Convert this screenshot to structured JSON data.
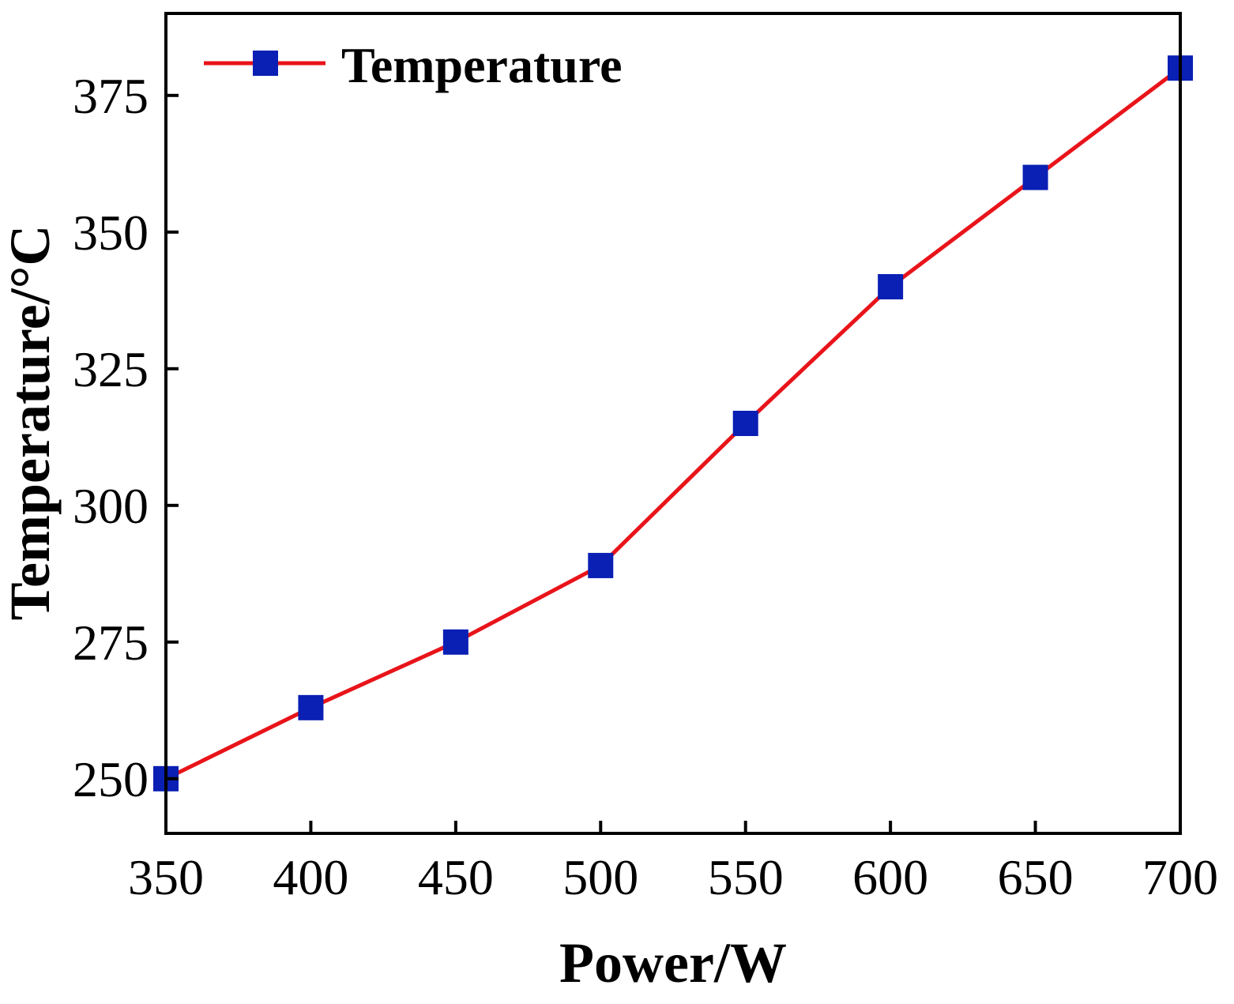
{
  "chart_data": {
    "type": "line",
    "title": "",
    "xlabel": "Power/W",
    "ylabel": "Temperature/°C",
    "xlim": [
      350,
      700
    ],
    "ylim": [
      240,
      390
    ],
    "xticks": [
      350,
      400,
      450,
      500,
      550,
      600,
      650,
      700
    ],
    "yticks": [
      250,
      275,
      300,
      325,
      350,
      375
    ],
    "grid": false,
    "legend_position": "top-left",
    "series": [
      {
        "name": "Temperature",
        "line_color": "#e8141a",
        "marker_color": "#0a1fb4",
        "marker": "square",
        "x": [
          350,
          400,
          450,
          500,
          550,
          600,
          650,
          700
        ],
        "y": [
          250,
          263,
          275,
          289,
          315,
          340,
          360,
          380
        ]
      }
    ]
  }
}
